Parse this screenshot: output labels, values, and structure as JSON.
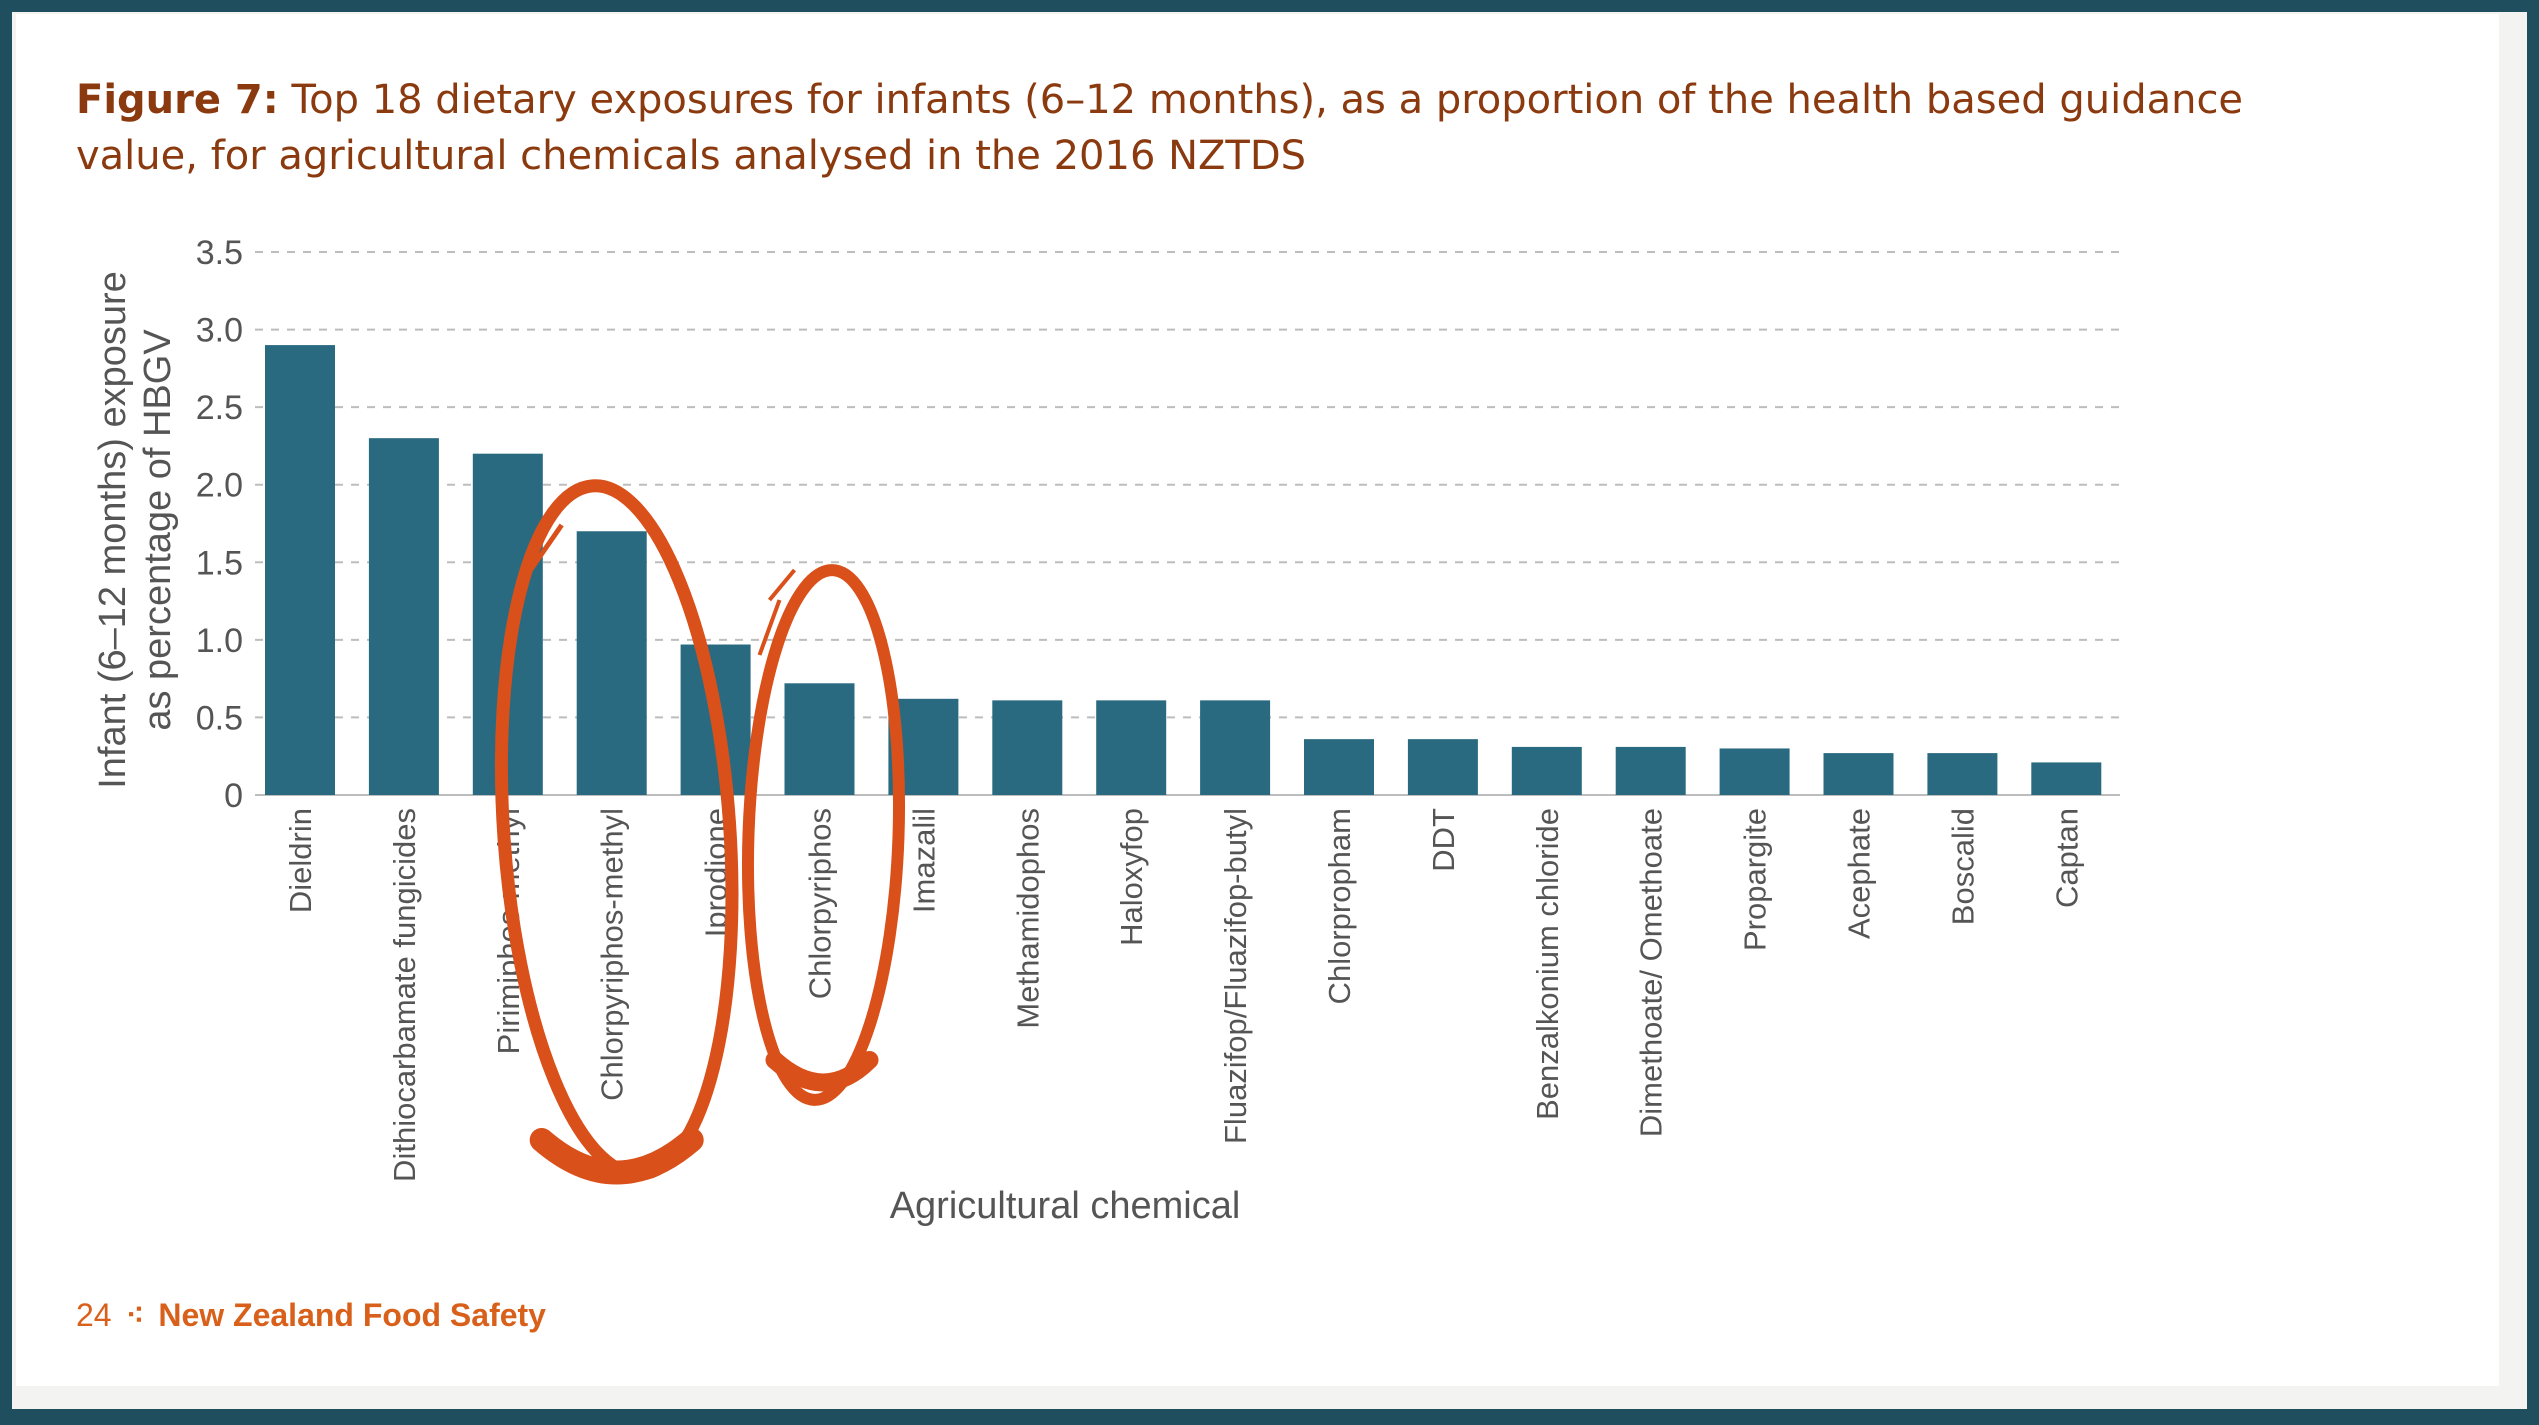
{
  "page": {
    "figure_label": "Figure 7:",
    "figure_caption": " Top 18 dietary exposures for infants (6–12 months), as a proportion of the health based guidance value, for agricultural chemicals analysed in the 2016 NZTDS",
    "page_number": "24",
    "separator": "⁖",
    "publisher": "New Zealand Food Safety"
  },
  "colors": {
    "bar": "#2a6a80",
    "title": "#8b3a0f",
    "footer": "#d9601a",
    "annotation": "#d9501a",
    "border": "#1f4e5f"
  },
  "chart_data": {
    "type": "bar",
    "title": "",
    "xlabel": "Agricultural chemical",
    "ylabel_lines": [
      "Infant (6–12 months) exposure",
      "as percentage of HBGV"
    ],
    "ylim": [
      0,
      3.5
    ],
    "yticks": [
      0,
      0.5,
      1.0,
      1.5,
      2.0,
      2.5,
      3.0,
      3.5
    ],
    "ytick_labels": [
      "0",
      "0.5",
      "1.0",
      "1.5",
      "2.0",
      "2.5",
      "3.0",
      "3.5"
    ],
    "grid": "horizontal dashed",
    "categories": [
      "Dieldrin",
      "Dithiocarbamate fungicides",
      "Pirimiphos-methyl",
      "Chlorpyriphos-methyl",
      "Iprodione",
      "Chlorpyriphos",
      "Imazalil",
      "Methamidophos",
      "Haloxyfop",
      "Fluazifop/Fluazifop-butyl",
      "Chlorpropham",
      "DDT",
      "Benzalkonium chloride",
      "Dimethoate/ Omethoate",
      "Propargite",
      "Acephate",
      "Boscalid",
      "Captan"
    ],
    "values": [
      2.9,
      2.3,
      2.2,
      1.7,
      0.97,
      0.72,
      0.62,
      0.61,
      0.61,
      0.61,
      0.36,
      0.36,
      0.31,
      0.31,
      0.3,
      0.27,
      0.27,
      0.21
    ],
    "annotations": [
      {
        "type": "hand-drawn ellipse",
        "category": "Chlorpyriphos-methyl"
      },
      {
        "type": "hand-drawn ellipse",
        "category": "Chlorpyriphos"
      }
    ]
  }
}
